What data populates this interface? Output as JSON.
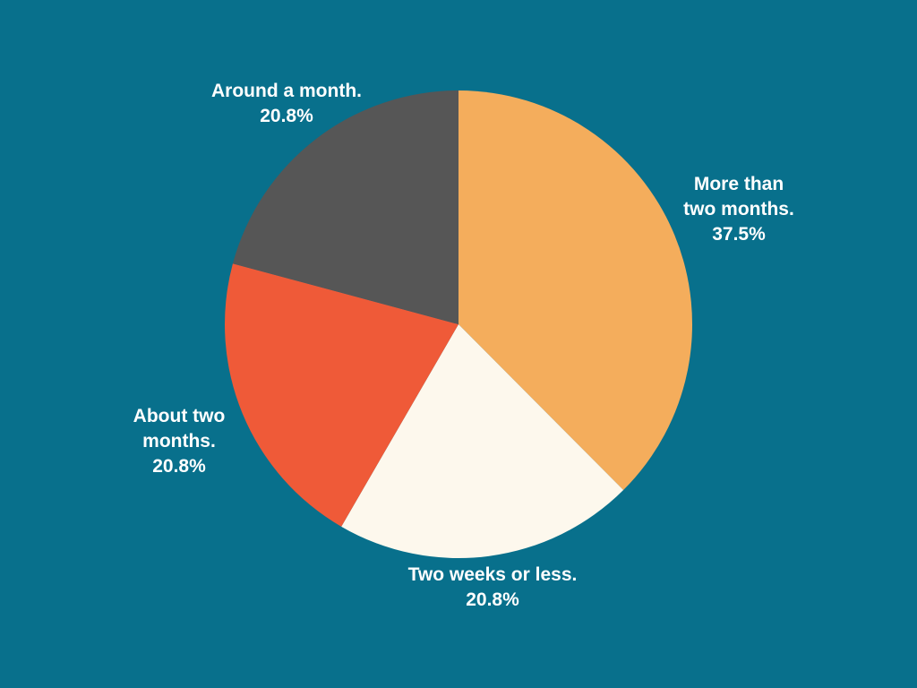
{
  "chart_data": {
    "type": "pie",
    "start": "12 o'clock, clockwise",
    "slices": [
      {
        "label_lines": [
          "More than",
          "two months."
        ],
        "value_text": "37.5%",
        "value": 37.5,
        "color": "#f4ad5c"
      },
      {
        "label_lines": [
          "Two weeks or less."
        ],
        "value_text": "20.8%",
        "value": 20.8,
        "color": "#fdf8ed"
      },
      {
        "label_lines": [
          "About two",
          "months."
        ],
        "value_text": "20.8%",
        "value": 20.8,
        "color": "#ef5a38"
      },
      {
        "label_lines": [
          "Around a month."
        ],
        "value_text": "20.8%",
        "value": 20.8,
        "color": "#565656"
      }
    ],
    "background": "#08708c"
  }
}
